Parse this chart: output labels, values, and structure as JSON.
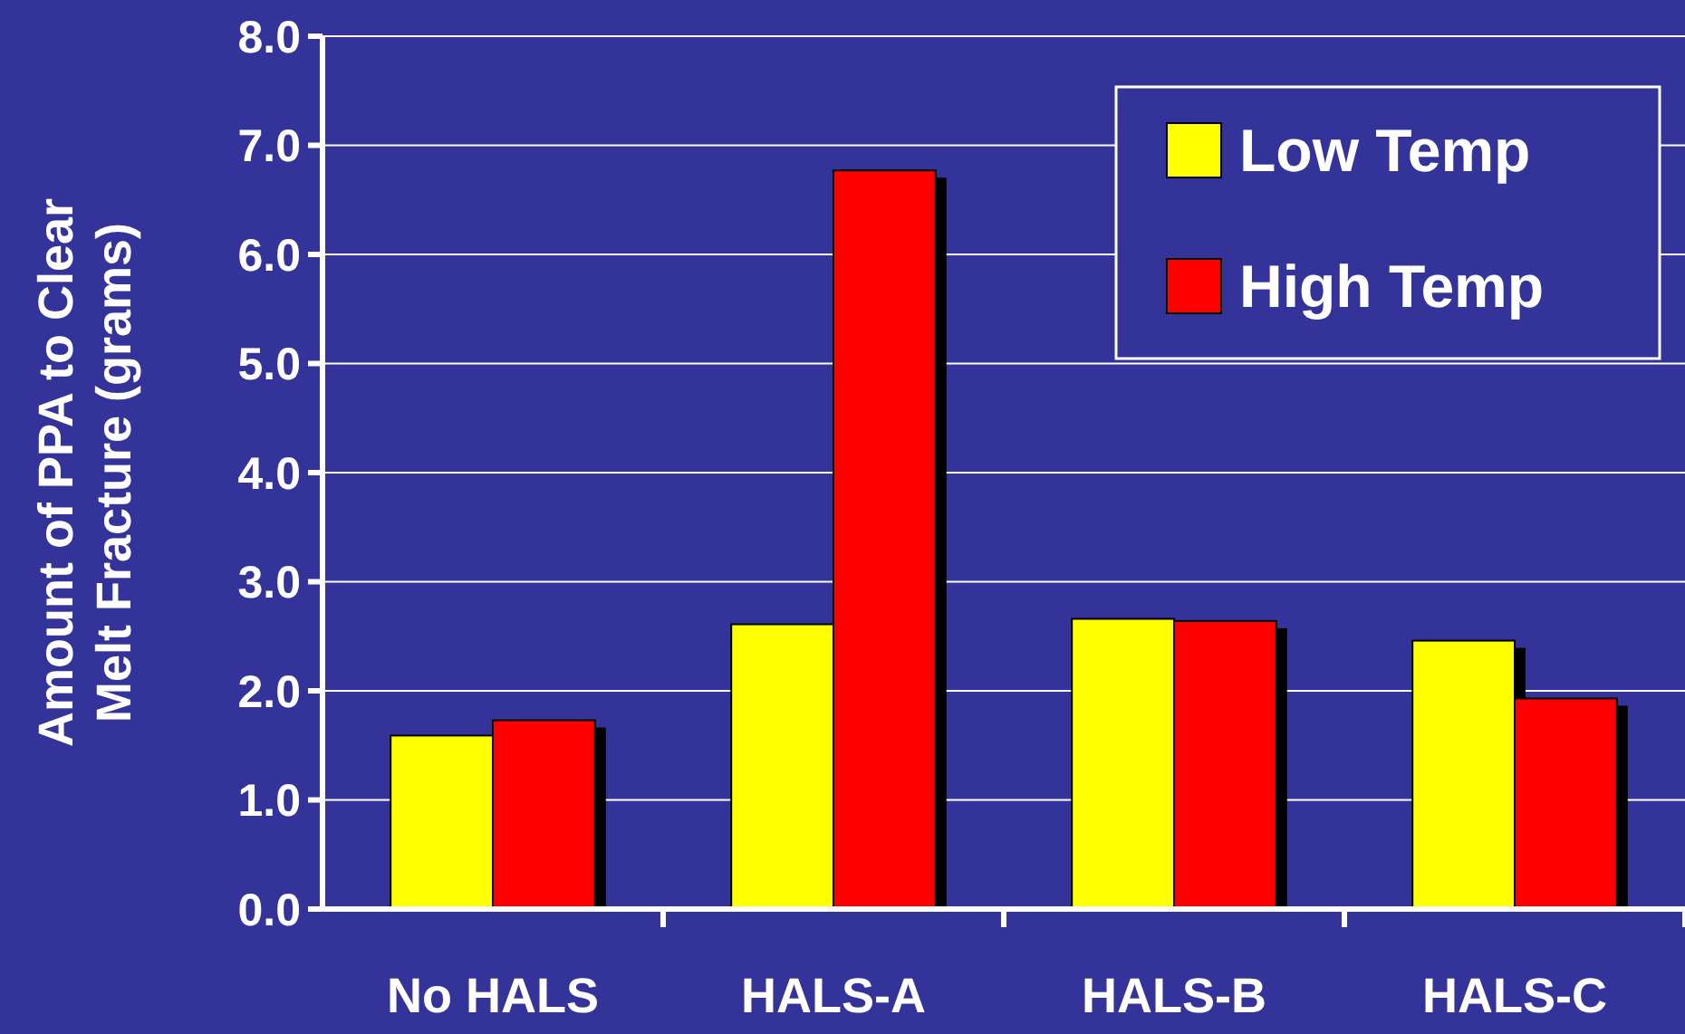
{
  "chart_data": {
    "type": "bar",
    "ylabel": "Amount of PPA to Clear\nMelt Fracture (grams)",
    "categories": [
      "No HALS",
      "HALS-A",
      "HALS-B",
      "HALS-C"
    ],
    "series": [
      {
        "name": "Low Temp",
        "color": "#ffff00",
        "values": [
          1.59,
          2.61,
          2.66,
          2.46
        ]
      },
      {
        "name": "High Temp",
        "color": "#ff0000",
        "values": [
          1.73,
          6.77,
          2.64,
          1.93
        ]
      }
    ],
    "ylim": [
      0,
      8
    ],
    "yticks": [
      {
        "value": 0,
        "label": "0.0"
      },
      {
        "value": 1,
        "label": "1.0"
      },
      {
        "value": 2,
        "label": "2.0"
      },
      {
        "value": 3,
        "label": "3.0"
      },
      {
        "value": 4,
        "label": "4.0"
      },
      {
        "value": 5,
        "label": "5.0"
      },
      {
        "value": 6,
        "label": "6.0"
      },
      {
        "value": 7,
        "label": "7.0"
      },
      {
        "value": 8,
        "label": "8.0"
      }
    ],
    "grid": "y",
    "legend": "top right"
  }
}
